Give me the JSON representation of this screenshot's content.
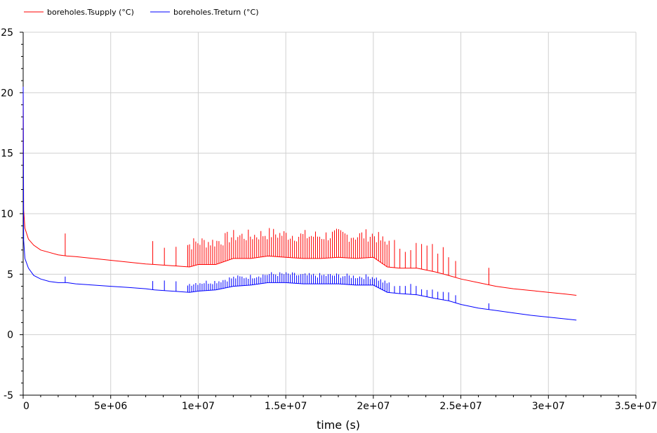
{
  "chart_data": {
    "type": "line",
    "title": "",
    "xlabel": "time (s)",
    "ylabel": "",
    "xlim": [
      0,
      35000000
    ],
    "ylim": [
      -5,
      25
    ],
    "grid": true,
    "legend_position": "top-left",
    "x_ticks": [
      0,
      5000000,
      10000000,
      15000000,
      20000000,
      25000000,
      30000000,
      35000000
    ],
    "x_tick_labels": [
      "0",
      "5e+06",
      "1e+07",
      "1.5e+07",
      "2e+07",
      "2.5e+07",
      "3e+07",
      "3.5e+07"
    ],
    "y_ticks": [
      -5,
      0,
      5,
      10,
      15,
      20,
      25
    ],
    "y_tick_labels": [
      "-5",
      "0",
      "5",
      "10",
      "15",
      "20",
      "25"
    ],
    "series": [
      {
        "name": "boreholes.Tsupply (°C)",
        "color": "#ff0000",
        "x": [
          0,
          30000,
          100000,
          300000,
          600000,
          1000000,
          1500000,
          2000000,
          2500000,
          3000000,
          4000000,
          5000000,
          6000000,
          7000000,
          7500000,
          8500000,
          9500000,
          10000000,
          11000000,
          12000000,
          13000000,
          14000000,
          15000000,
          16000000,
          17000000,
          18000000,
          19000000,
          20000000,
          20800000,
          21500000,
          22500000,
          23500000,
          24300000,
          25000000,
          26000000,
          27000000,
          28000000,
          29000000,
          30000000,
          31000000,
          31600000
        ],
        "y": [
          20.5,
          10.3,
          8.8,
          7.9,
          7.4,
          7.0,
          6.8,
          6.6,
          6.5,
          6.45,
          6.3,
          6.15,
          6.0,
          5.85,
          5.8,
          5.7,
          5.6,
          5.8,
          5.8,
          6.3,
          6.3,
          6.5,
          6.4,
          6.3,
          6.3,
          6.4,
          6.3,
          6.4,
          5.6,
          5.5,
          5.5,
          5.2,
          4.9,
          4.6,
          4.3,
          4.0,
          3.8,
          3.65,
          3.5,
          3.35,
          3.25
        ]
      },
      {
        "name": "boreholes.Treturn (°C)",
        "color": "#0000ff",
        "x": [
          0,
          30000,
          100000,
          300000,
          600000,
          1000000,
          1500000,
          2000000,
          2500000,
          3000000,
          4000000,
          5000000,
          6000000,
          7000000,
          7500000,
          8500000,
          9500000,
          10000000,
          11000000,
          12000000,
          13000000,
          14000000,
          15000000,
          16000000,
          17000000,
          18000000,
          19000000,
          20000000,
          20800000,
          21500000,
          22500000,
          23500000,
          24300000,
          25000000,
          26000000,
          27000000,
          28000000,
          29000000,
          30000000,
          31000000,
          31600000
        ],
        "y": [
          20.5,
          7.8,
          6.3,
          5.5,
          4.9,
          4.6,
          4.4,
          4.3,
          4.3,
          4.2,
          4.1,
          4.0,
          3.9,
          3.8,
          3.7,
          3.6,
          3.5,
          3.6,
          3.7,
          4.0,
          4.1,
          4.3,
          4.3,
          4.2,
          4.2,
          4.2,
          4.1,
          4.1,
          3.5,
          3.4,
          3.3,
          3.0,
          2.8,
          2.5,
          2.2,
          2.0,
          1.8,
          1.6,
          1.45,
          1.3,
          1.2
        ]
      }
    ]
  }
}
